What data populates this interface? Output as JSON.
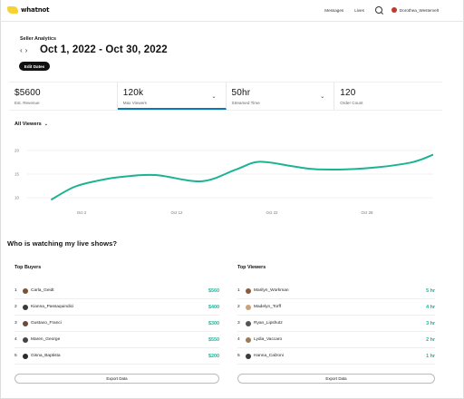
{
  "header": {
    "brand": "whatnot",
    "nav_messages": "Messages",
    "nav_lives": "Lives",
    "user_name": "Dorothea_Westervelt"
  },
  "page": {
    "breadcrumb": "Seller Analytics",
    "prev_arrow": "‹",
    "next_arrow": "›",
    "date_range": "Oct 1, 2022 - Oct 30, 2022",
    "edit_dates_label": "Edit Dates"
  },
  "stats": [
    {
      "value": "$5600",
      "label": "Est. Revenue",
      "active": false
    },
    {
      "value": "120k",
      "label": "Max Viewers",
      "active": true
    },
    {
      "value": "50hr",
      "label": "Streamed Time",
      "active": false
    },
    {
      "value": "120",
      "label": "Order Count",
      "active": false
    }
  ],
  "viewer_filter": "All Viewers",
  "chart_data": {
    "type": "line",
    "title": "",
    "xlabel": "",
    "ylabel": "",
    "y_ticks": [
      20,
      15,
      10
    ],
    "x_ticks": [
      "Oct 2",
      "Oct 12",
      "Oct 22",
      "Oct 28"
    ],
    "ylim": [
      8.5,
      21.5
    ],
    "xlim": [
      -0.5,
      33
    ],
    "grid": true,
    "color": "#1bb393",
    "series": [
      {
        "x": [
          0,
          2,
          4,
          6,
          9,
          13,
          16,
          18,
          21,
          23,
          27,
          31,
          33
        ],
        "values": [
          9.6,
          12.3,
          13.6,
          14.4,
          14.8,
          13.5,
          16.0,
          17.6,
          16.6,
          16.0,
          16.2,
          17.4,
          19.1
        ]
      }
    ]
  },
  "section_title": "Who is watching my live shows?",
  "top_buyers": {
    "title": "Top Buyers",
    "export_label": "Export Data",
    "rows": [
      {
        "rank": "1",
        "name": "Carla_Geidt",
        "value": "$560",
        "color": "#7a5236"
      },
      {
        "rank": "2",
        "name": "Kianna_Passaquindici",
        "value": "$400",
        "color": "#3a3a3a"
      },
      {
        "rank": "3",
        "name": "Gustavo_Franci",
        "value": "$300",
        "color": "#6b4a3a"
      },
      {
        "rank": "4",
        "name": "Maren_George",
        "value": "$550",
        "color": "#444"
      },
      {
        "rank": "5",
        "name": "Gisna_Baptista",
        "value": "$200",
        "color": "#2b2b2b"
      }
    ]
  },
  "top_viewers": {
    "title": "Top Viewers",
    "export_label": "Export Data",
    "rows": [
      {
        "rank": "1",
        "name": "Marilyn_Workman",
        "value": "5 hr",
        "color": "#8a5a3a"
      },
      {
        "rank": "2",
        "name": "Madelyn_Torff",
        "value": "4 hr",
        "color": "#c9a27a"
      },
      {
        "rank": "3",
        "name": "Ryan_Lipshutz",
        "value": "3 hr",
        "color": "#555"
      },
      {
        "rank": "4",
        "name": "Lydia_Vaccaro",
        "value": "2 hr",
        "color": "#9b7a5a"
      },
      {
        "rank": "5",
        "name": "Hanna_Calzoni",
        "value": "1 hr",
        "color": "#3b3b3b"
      }
    ]
  }
}
